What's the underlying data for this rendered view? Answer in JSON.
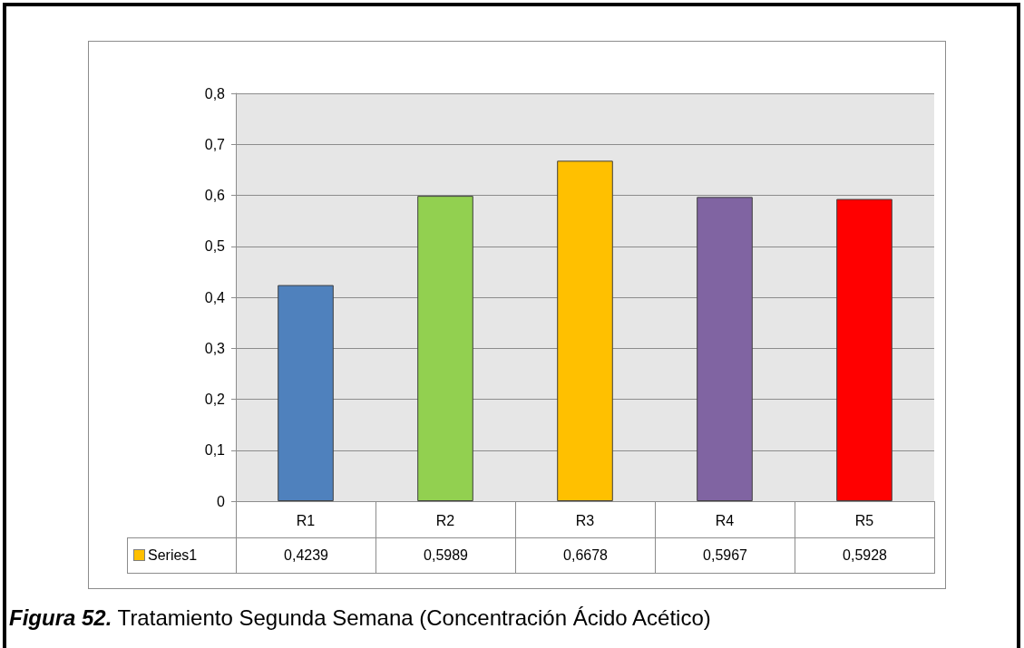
{
  "chart_data": {
    "type": "bar",
    "categories": [
      "R1",
      "R2",
      "R3",
      "R4",
      "R5"
    ],
    "series": [
      {
        "name": "Series1",
        "color": "#ffc000",
        "colors": [
          "#4f81bd",
          "#92d050",
          "#ffc000",
          "#8064a2",
          "#ff0000"
        ],
        "values": [
          0.4239,
          0.5989,
          0.6678,
          0.5967,
          0.5928
        ],
        "value_labels": [
          "0,4239",
          "0,5989",
          "0,6678",
          "0,5967",
          "0,5928"
        ]
      }
    ],
    "ylim": [
      0,
      0.8
    ],
    "yticks": [
      {
        "value": 0,
        "label": "0"
      },
      {
        "value": 0.1,
        "label": "0,1"
      },
      {
        "value": 0.2,
        "label": "0,2"
      },
      {
        "value": 0.3,
        "label": "0,3"
      },
      {
        "value": 0.4,
        "label": "0,4"
      },
      {
        "value": 0.5,
        "label": "0,5"
      },
      {
        "value": 0.6,
        "label": "0,6"
      },
      {
        "value": 0.7,
        "label": "0,7"
      },
      {
        "value": 0.8,
        "label": "0,8"
      }
    ],
    "grid": "y",
    "legend": "bottom",
    "annotations": [
      "Figura 52.",
      "Tratamiento Segunda Semana (Concentración Ácido Acético)"
    ]
  }
}
